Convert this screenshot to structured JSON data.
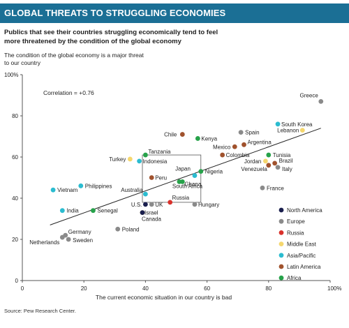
{
  "header": {
    "title": "GLOBAL THREATS TO STRUGGLING ECONOMIES",
    "subtitle": "Publics that see their countries struggling economically tend to feel more threatened by the condition of the global economy",
    "ylabel": "The condition of the global economy is a major threat to our country",
    "ytop_label": "100%",
    "source": "Source: Pew Research Center."
  },
  "colors": {
    "North America": "#1a1f4e",
    "Europe": "#8a8a8a",
    "Russia": "#d9312b",
    "Middle East": "#f5d76e",
    "Asia/Pacific": "#2bbcd0",
    "Latin America": "#a0522d",
    "Africa": "#27a24a",
    "trend": "#222222",
    "banner": "#1b6f95"
  },
  "chart_data": {
    "type": "scatter",
    "title": "GLOBAL THREATS TO STRUGGLING ECONOMIES",
    "xlabel": "The current economic situation in our country is bad",
    "ylabel": "The condition of the global economy is a major threat to our country",
    "xlim": [
      0,
      100
    ],
    "ylim": [
      0,
      100
    ],
    "x_ticks": [
      "0",
      "20",
      "40",
      "60",
      "80",
      "100%"
    ],
    "y_ticks": [
      "0",
      "20",
      "40",
      "60",
      "80",
      "100%"
    ],
    "annotation": "Correlation = +0.76",
    "trendline": {
      "x1": 9,
      "y1": 27,
      "x2": 97,
      "y2": 74
    },
    "legend": [
      "North America",
      "Europe",
      "Russia",
      "Middle East",
      "Asia/Pacific",
      "Latin America",
      "Africa"
    ],
    "points": [
      {
        "name": "Greece",
        "region": "Europe",
        "x": 97,
        "y": 87
      },
      {
        "name": "South Korea",
        "region": "Asia/Pacific",
        "x": 83,
        "y": 76
      },
      {
        "name": "Lebanon",
        "region": "Middle East",
        "x": 91,
        "y": 73
      },
      {
        "name": "Spain",
        "region": "Europe",
        "x": 71,
        "y": 72
      },
      {
        "name": "Chile",
        "region": "Latin America",
        "x": 52,
        "y": 71
      },
      {
        "name": "Kenya",
        "region": "Africa",
        "x": 57,
        "y": 69
      },
      {
        "name": "Argentina",
        "region": "Latin America",
        "x": 72,
        "y": 66
      },
      {
        "name": "Mexico",
        "region": "Latin America",
        "x": 69,
        "y": 65
      },
      {
        "name": "Tunisia",
        "region": "Africa",
        "x": 80,
        "y": 61
      },
      {
        "name": "Colombia",
        "region": "Latin America",
        "x": 65,
        "y": 61
      },
      {
        "name": "Tanzania",
        "region": "Africa",
        "x": 40,
        "y": 61
      },
      {
        "name": "Turkey",
        "region": "Middle East",
        "x": 35,
        "y": 59
      },
      {
        "name": "Indonesia",
        "region": "Asia/Pacific",
        "x": 38,
        "y": 58
      },
      {
        "name": "Jordan",
        "region": "Middle East",
        "x": 79,
        "y": 58
      },
      {
        "name": "Brazil",
        "region": "Latin America",
        "x": 82,
        "y": 57
      },
      {
        "name": "Venezuela",
        "region": "Latin America",
        "x": 80,
        "y": 56
      },
      {
        "name": "Italy",
        "region": "Europe",
        "x": 83,
        "y": 55
      },
      {
        "name": "Nigeria",
        "region": "Africa",
        "x": 58,
        "y": 53
      },
      {
        "name": "Japan",
        "region": "Asia/Pacific",
        "x": 56,
        "y": 51
      },
      {
        "name": "Peru",
        "region": "Latin America",
        "x": 42,
        "y": 50
      },
      {
        "name": "Ghana",
        "region": "Africa",
        "x": 52,
        "y": 48
      },
      {
        "name": "South Africa",
        "region": "Africa",
        "x": 51,
        "y": 48
      },
      {
        "name": "Vietnam",
        "region": "Asia/Pacific",
        "x": 10,
        "y": 44
      },
      {
        "name": "Philippines",
        "region": "Asia/Pacific",
        "x": 19,
        "y": 46
      },
      {
        "name": "France",
        "region": "Europe",
        "x": 78,
        "y": 45
      },
      {
        "name": "Australia",
        "region": "Asia/Pacific",
        "x": 40,
        "y": 42
      },
      {
        "name": "Russia",
        "region": "Russia",
        "x": 48,
        "y": 38
      },
      {
        "name": "U.S.",
        "region": "North America",
        "x": 40,
        "y": 37
      },
      {
        "name": "UK",
        "region": "Europe",
        "x": 42,
        "y": 37
      },
      {
        "name": "Hungary",
        "region": "Europe",
        "x": 56,
        "y": 37
      },
      {
        "name": "India",
        "region": "Asia/Pacific",
        "x": 13,
        "y": 34
      },
      {
        "name": "Senegal",
        "region": "Africa",
        "x": 23,
        "y": 34
      },
      {
        "name": "Israel",
        "region": "Middle East",
        "x": 39,
        "y": 33
      },
      {
        "name": "Canada",
        "region": "North America",
        "x": 39,
        "y": 33
      },
      {
        "name": "Poland",
        "region": "Europe",
        "x": 31,
        "y": 25
      },
      {
        "name": "Germany",
        "region": "Europe",
        "x": 14,
        "y": 22
      },
      {
        "name": "Netherlands",
        "region": "Europe",
        "x": 13,
        "y": 21
      },
      {
        "name": "Sweden",
        "region": "Europe",
        "x": 15,
        "y": 20
      }
    ]
  }
}
